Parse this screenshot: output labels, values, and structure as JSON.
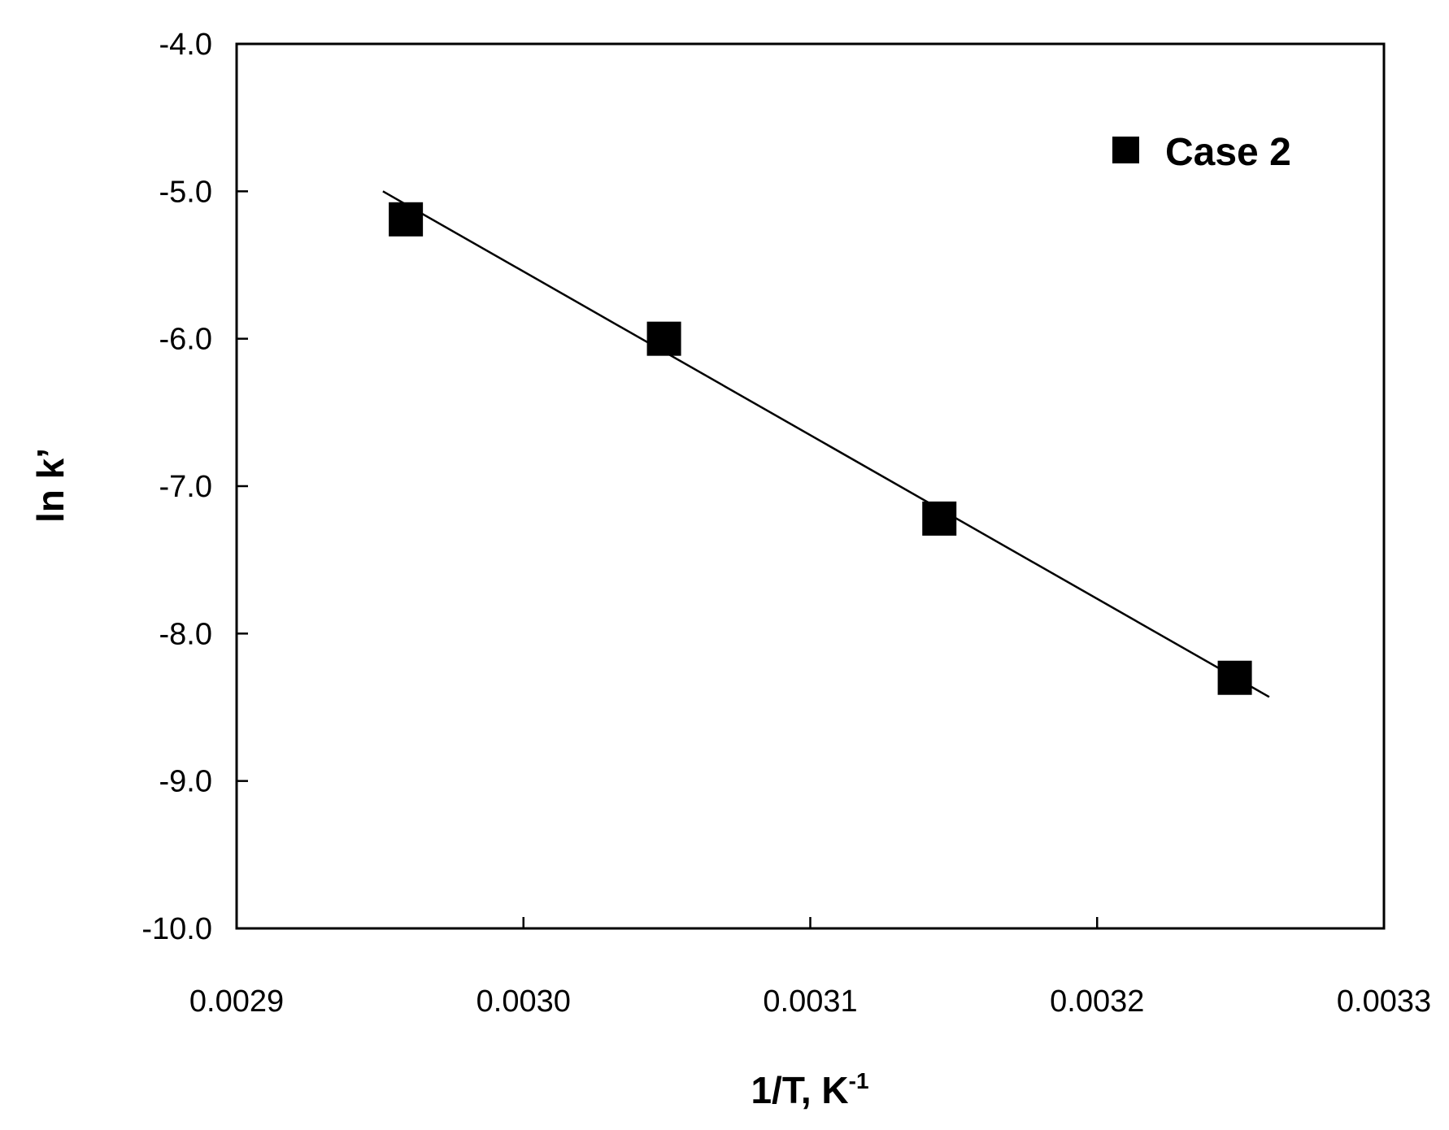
{
  "chart_data": {
    "type": "scatter",
    "xlabel": "1/T, K",
    "xlabel_superscript": "-1",
    "ylabel": "ln k’",
    "xlim": [
      0.0029,
      0.0033
    ],
    "ylim": [
      -10.0,
      -4.0
    ],
    "x_ticks": [
      "0.0029",
      "0.0030",
      "0.0031",
      "0.0032",
      "0.0033"
    ],
    "y_ticks": [
      "-4.0",
      "-5.0",
      "-6.0",
      "-7.0",
      "-8.0",
      "-9.0",
      "-10.0"
    ],
    "grid": false,
    "legend_position": "top-right",
    "series": [
      {
        "name": "Case 2",
        "marker": "square",
        "color": "#000000",
        "points": [
          {
            "x": 0.002959,
            "y": -5.19
          },
          {
            "x": 0.003049,
            "y": -6.0
          },
          {
            "x": 0.003145,
            "y": -7.22
          },
          {
            "x": 0.003248,
            "y": -8.3
          }
        ]
      }
    ],
    "trendline": {
      "type": "linear",
      "color": "#000000",
      "x_range": [
        0.002951,
        0.00326
      ],
      "points": [
        {
          "x": 0.002951,
          "y": -5.0
        },
        {
          "x": 0.00326,
          "y": -8.43
        }
      ]
    }
  }
}
